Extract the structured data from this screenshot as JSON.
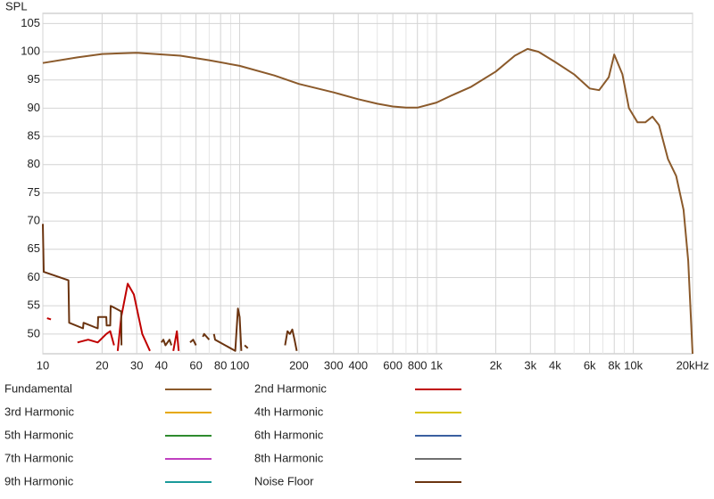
{
  "chart_data": {
    "type": "line",
    "y_label": "SPL",
    "xscale": "log",
    "grid": true,
    "xlim": [
      10,
      20000
    ],
    "ylim": [
      46.5,
      106.8
    ],
    "xticks": [
      10,
      20,
      30,
      40,
      60,
      80,
      100,
      200,
      300,
      400,
      600,
      800,
      {
        "value": 1000,
        "label": "1k"
      },
      {
        "value": 2000,
        "label": "2k"
      },
      {
        "value": 3000,
        "label": "3k"
      },
      {
        "value": 4000,
        "label": "4k"
      },
      {
        "value": 6000,
        "label": "6k"
      },
      {
        "value": 8000,
        "label": "8k"
      },
      {
        "value": 10000,
        "label": "10k"
      },
      {
        "value": 20000,
        "label": "20kHz"
      }
    ],
    "x_minor_ticks": [
      50,
      70,
      90,
      500,
      700,
      900,
      5000,
      7000,
      9000
    ],
    "yticks": [
      50,
      55,
      60,
      65,
      70,
      75,
      80,
      85,
      90,
      95,
      100,
      105
    ],
    "series": [
      {
        "name": "Fundamental",
        "color": "#8b5a2b",
        "x": [
          10,
          15,
          20,
          30,
          50,
          70,
          100,
          150,
          200,
          300,
          400,
          500,
          600,
          700,
          800,
          1000,
          1200,
          1500,
          2000,
          2500,
          2900,
          3300,
          4000,
          5000,
          6000,
          6700,
          7500,
          8000,
          8800,
          9500,
          10500,
          11500,
          12500,
          13500,
          15000,
          16500,
          18000,
          19000,
          20000
        ],
        "values": [
          98,
          99,
          99.6,
          99.8,
          99.3,
          98.5,
          97.5,
          95.8,
          94.3,
          92.8,
          91.6,
          90.8,
          90.3,
          90.1,
          90.1,
          91,
          92.3,
          93.8,
          96.5,
          99.3,
          100.5,
          100,
          98.2,
          96,
          93.5,
          93.2,
          95.5,
          99.5,
          96,
          90,
          87.5,
          87.5,
          88.5,
          87,
          81,
          78,
          72,
          63,
          46.5
        ]
      },
      {
        "name": "2nd Harmonic",
        "color": "#c00000",
        "x": [
          10.5,
          11,
          12,
          15,
          17,
          19,
          21,
          22,
          23,
          23.5,
          24,
          25,
          27,
          29,
          32,
          35,
          40,
          46,
          48,
          49
        ],
        "values": [
          52.8,
          52.6,
          null,
          48.5,
          49,
          48.5,
          50,
          50.5,
          48,
          null,
          47,
          53,
          58.9,
          57,
          50,
          47,
          null,
          47,
          50.5,
          47
        ]
      },
      {
        "name": "3rd Harmonic",
        "color": "#e6a800"
      },
      {
        "name": "4th Harmonic",
        "color": "#d8c400"
      },
      {
        "name": "5th Harmonic",
        "color": "#2e8b2e"
      },
      {
        "name": "6th Harmonic",
        "color": "#3a5fa0"
      },
      {
        "name": "7th Harmonic",
        "color": "#c040c0"
      },
      {
        "name": "8th Harmonic",
        "color": "#707070"
      },
      {
        "name": "9th Harmonic",
        "color": "#1a9a9a"
      },
      {
        "name": "Noise Floor",
        "color": "#6b3410",
        "x": [
          10,
          10.1,
          13.5,
          13.6,
          16,
          16.1,
          19,
          19.1,
          21,
          21.1,
          22,
          22.1,
          25,
          25.1,
          26,
          40,
          41,
          42,
          44,
          45,
          55,
          56,
          58,
          60,
          62,
          65,
          66,
          70,
          72,
          74,
          75,
          95,
          98,
          100,
          102,
          104,
          106,
          110,
          112,
          170,
          175,
          180,
          185,
          190,
          195
        ],
        "values": [
          69.5,
          61,
          59.5,
          52,
          51,
          52,
          51,
          53,
          53,
          51.5,
          51.5,
          55,
          54,
          48,
          null,
          48.5,
          49,
          48,
          49,
          48,
          null,
          48.5,
          49,
          48,
          null,
          49.5,
          50,
          49,
          null,
          50,
          49,
          47,
          54.5,
          53,
          47,
          null,
          48,
          47.5,
          null,
          48,
          50.5,
          50,
          50.8,
          49,
          47
        ]
      }
    ]
  }
}
